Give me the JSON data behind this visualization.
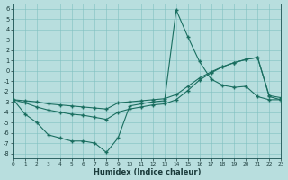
{
  "xlabel": "Humidex (Indice chaleur)",
  "bg_color": "#b8dede",
  "grid_color": "#80c0c0",
  "line_color": "#1a6e60",
  "xlim": [
    0,
    23
  ],
  "ylim": [
    -8.5,
    6.5
  ],
  "xticks": [
    0,
    1,
    2,
    3,
    4,
    5,
    6,
    7,
    8,
    9,
    10,
    11,
    12,
    13,
    14,
    15,
    16,
    17,
    18,
    19,
    20,
    21,
    22,
    23
  ],
  "yticks": [
    -8,
    -7,
    -6,
    -5,
    -4,
    -3,
    -2,
    -1,
    0,
    1,
    2,
    3,
    4,
    5,
    6
  ],
  "line1_x": [
    0,
    1,
    2,
    3,
    4,
    5,
    6,
    7,
    8,
    9,
    10,
    11,
    12,
    13,
    14,
    15,
    16,
    17,
    18,
    19,
    20,
    21,
    22,
    23
  ],
  "line1_y": [
    -2.8,
    -4.2,
    -5.0,
    -6.2,
    -6.5,
    -6.8,
    -6.8,
    -7.0,
    -7.9,
    -6.5,
    -3.4,
    -3.2,
    -3.0,
    -2.9,
    5.9,
    3.3,
    0.9,
    -0.8,
    -1.4,
    -1.6,
    -1.5,
    -2.5,
    -2.8,
    -2.8
  ],
  "line2_x": [
    0,
    1,
    2,
    3,
    4,
    5,
    6,
    7,
    8,
    9,
    10,
    11,
    12,
    13,
    14,
    15,
    16,
    17,
    18,
    19,
    20,
    21,
    22,
    23
  ],
  "line2_y": [
    -2.8,
    -2.9,
    -3.0,
    -3.2,
    -3.3,
    -3.4,
    -3.5,
    -3.6,
    -3.7,
    -3.1,
    -3.0,
    -2.9,
    -2.8,
    -2.7,
    -2.3,
    -1.5,
    -0.7,
    -0.1,
    0.4,
    0.8,
    1.1,
    1.3,
    -2.4,
    -2.6
  ],
  "line3_x": [
    0,
    1,
    2,
    3,
    4,
    5,
    6,
    7,
    8,
    9,
    10,
    11,
    12,
    13,
    14,
    15,
    16,
    17,
    18,
    19,
    20,
    21,
    22,
    23
  ],
  "line3_y": [
    -2.8,
    -3.1,
    -3.5,
    -3.8,
    -4.0,
    -4.2,
    -4.3,
    -4.5,
    -4.7,
    -4.0,
    -3.7,
    -3.5,
    -3.3,
    -3.2,
    -2.8,
    -1.9,
    -0.9,
    -0.2,
    0.4,
    0.8,
    1.1,
    1.3,
    -2.5,
    -2.8
  ]
}
